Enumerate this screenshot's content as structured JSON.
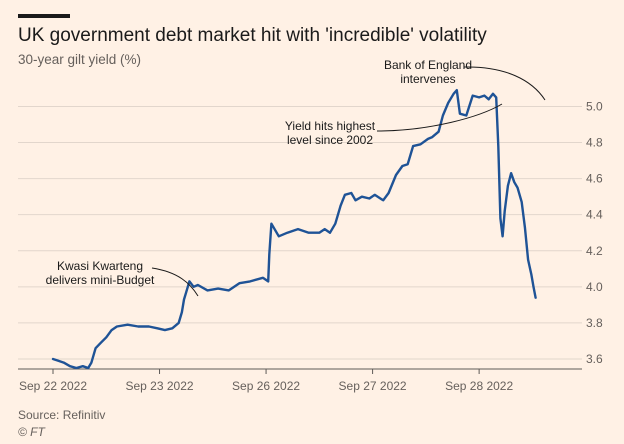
{
  "header": {
    "title": "UK government debt market hit with 'incredible' volatility",
    "subtitle": "30-year gilt yield (%)"
  },
  "footer": {
    "source": "Source: Refinitiv",
    "credit": "© FT"
  },
  "colors": {
    "line": "#1f5396",
    "grid": "#e2d6cc",
    "text": "#1a1a1a",
    "muted": "#66605c",
    "background": "#fff1e5"
  },
  "chart_data": {
    "type": "line",
    "title": "UK government debt market hit with 'incredible' volatility",
    "ylabel": "30-year gilt yield (%)",
    "ylim": [
      3.55,
      5.18
    ],
    "yticks": [
      3.6,
      3.8,
      4.0,
      4.2,
      4.4,
      4.6,
      4.8,
      5.0
    ],
    "ytick_labels": [
      "3.6",
      "3.8",
      "4.0",
      "4.2",
      "4.4",
      "4.6",
      "4.8",
      "5.0"
    ],
    "xlim": [
      0,
      4.9
    ],
    "xticks": [
      0,
      1,
      2,
      3,
      4
    ],
    "xtick_labels": [
      "Sep 22 2022",
      "Sep 23 2022",
      "Sep 26 2022",
      "Sep 27 2022",
      "Sep 28 2022"
    ],
    "grid": true,
    "series": [
      {
        "values": [
          [
            0.0,
            3.6
          ],
          [
            0.05,
            3.59
          ],
          [
            0.1,
            3.58
          ],
          [
            0.16,
            3.56
          ],
          [
            0.22,
            3.55
          ],
          [
            0.28,
            3.56
          ],
          [
            0.33,
            3.55
          ],
          [
            0.36,
            3.58
          ],
          [
            0.4,
            3.66
          ],
          [
            0.45,
            3.69
          ],
          [
            0.5,
            3.72
          ],
          [
            0.55,
            3.76
          ],
          [
            0.6,
            3.78
          ],
          [
            0.7,
            3.79
          ],
          [
            0.8,
            3.78
          ],
          [
            0.9,
            3.78
          ],
          [
            0.98,
            3.77
          ],
          [
            1.05,
            3.76
          ],
          [
            1.12,
            3.77
          ],
          [
            1.18,
            3.8
          ],
          [
            1.21,
            3.86
          ],
          [
            1.23,
            3.93
          ],
          [
            1.25,
            3.97
          ],
          [
            1.28,
            4.03
          ],
          [
            1.32,
            4.0
          ],
          [
            1.36,
            4.01
          ],
          [
            1.45,
            3.98
          ],
          [
            1.55,
            3.99
          ],
          [
            1.65,
            3.98
          ],
          [
            1.75,
            4.02
          ],
          [
            1.85,
            4.03
          ],
          [
            1.97,
            4.05
          ],
          [
            2.02,
            4.03
          ],
          [
            2.03,
            4.18
          ],
          [
            2.05,
            4.35
          ],
          [
            2.12,
            4.28
          ],
          [
            2.2,
            4.3
          ],
          [
            2.3,
            4.32
          ],
          [
            2.4,
            4.3
          ],
          [
            2.5,
            4.3
          ],
          [
            2.55,
            4.32
          ],
          [
            2.6,
            4.3
          ],
          [
            2.65,
            4.35
          ],
          [
            2.7,
            4.45
          ],
          [
            2.74,
            4.51
          ],
          [
            2.8,
            4.52
          ],
          [
            2.84,
            4.48
          ],
          [
            2.9,
            4.5
          ],
          [
            2.97,
            4.49
          ],
          [
            3.02,
            4.51
          ],
          [
            3.1,
            4.48
          ],
          [
            3.15,
            4.52
          ],
          [
            3.22,
            4.62
          ],
          [
            3.28,
            4.67
          ],
          [
            3.33,
            4.68
          ],
          [
            3.38,
            4.78
          ],
          [
            3.45,
            4.79
          ],
          [
            3.52,
            4.82
          ],
          [
            3.56,
            4.83
          ],
          [
            3.62,
            4.86
          ],
          [
            3.66,
            4.95
          ],
          [
            3.71,
            5.02
          ],
          [
            3.76,
            5.07
          ],
          [
            3.79,
            5.09
          ],
          [
            3.82,
            4.96
          ],
          [
            3.88,
            4.95
          ],
          [
            3.94,
            5.06
          ],
          [
            4.0,
            5.05
          ],
          [
            4.05,
            5.06
          ],
          [
            4.09,
            5.04
          ],
          [
            4.13,
            5.07
          ],
          [
            4.16,
            5.05
          ],
          [
            4.18,
            4.78
          ],
          [
            4.2,
            4.38
          ],
          [
            4.22,
            4.28
          ],
          [
            4.24,
            4.42
          ],
          [
            4.27,
            4.56
          ],
          [
            4.3,
            4.63
          ],
          [
            4.33,
            4.58
          ],
          [
            4.36,
            4.55
          ],
          [
            4.4,
            4.47
          ],
          [
            4.43,
            4.33
          ],
          [
            4.46,
            4.15
          ],
          [
            4.49,
            4.07
          ],
          [
            4.51,
            4.0
          ],
          [
            4.53,
            3.94
          ]
        ]
      }
    ],
    "annotations": [
      {
        "lines": [
          "Bank of England",
          "intervenes"
        ],
        "x": 4.15,
        "y": 5.07
      },
      {
        "lines": [
          "Yield hits highest",
          "level since 2002"
        ],
        "x": 3.79,
        "y": 5.09
      },
      {
        "lines": [
          "Kwasi Kwarteng",
          "delivers mini-Budget"
        ],
        "x": 1.23,
        "y": 3.93
      }
    ]
  }
}
